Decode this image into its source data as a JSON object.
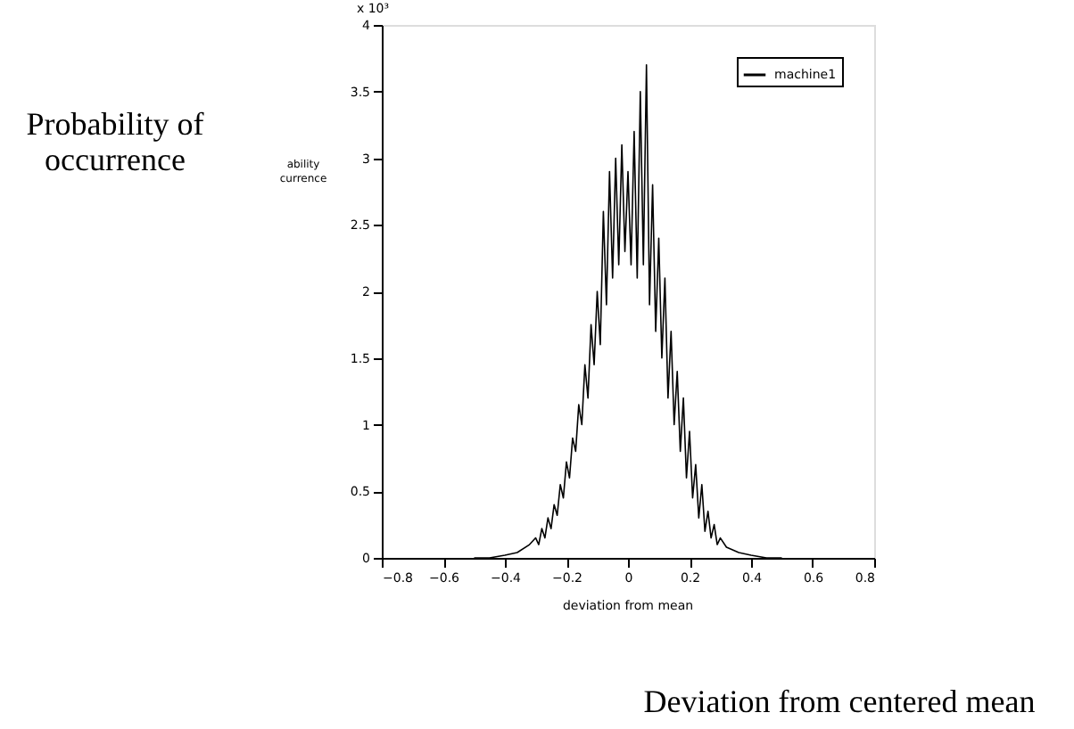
{
  "chart_data": {
    "type": "line",
    "xlabel": "Deviation from centered mean",
    "ylabel": "Probability of occurrence",
    "annotations": [
      "deviation from mean",
      "ability",
      "currence",
      "x 10³"
    ],
    "x": [
      -0.5,
      -0.45,
      -0.4,
      -0.36,
      -0.32,
      -0.3,
      -0.29,
      -0.28,
      -0.27,
      -0.26,
      -0.25,
      -0.24,
      -0.23,
      -0.22,
      -0.21,
      -0.2,
      -0.19,
      -0.18,
      -0.17,
      -0.16,
      -0.15,
      -0.14,
      -0.13,
      -0.12,
      -0.11,
      -0.1,
      -0.09,
      -0.08,
      -0.07,
      -0.06,
      -0.05,
      -0.04,
      -0.03,
      -0.02,
      -0.01,
      0,
      0.01,
      0.02,
      0.03,
      0.04,
      0.05,
      0.06,
      0.07,
      0.08,
      0.09,
      0.1,
      0.11,
      0.12,
      0.13,
      0.14,
      0.15,
      0.16,
      0.17,
      0.18,
      0.19,
      0.2,
      0.21,
      0.22,
      0.23,
      0.24,
      0.25,
      0.26,
      0.27,
      0.28,
      0.29,
      0.3,
      0.32,
      0.36,
      0.4,
      0.45,
      0.5
    ],
    "series": [
      {
        "name": "machine1",
        "color": "#000000",
        "values": [
          0,
          0,
          0.02,
          0.04,
          0.1,
          0.15,
          0.1,
          0.22,
          0.15,
          0.3,
          0.22,
          0.4,
          0.32,
          0.55,
          0.45,
          0.72,
          0.6,
          0.9,
          0.8,
          1.15,
          1.0,
          1.45,
          1.2,
          1.75,
          1.45,
          2.0,
          1.6,
          2.6,
          1.9,
          2.9,
          2.1,
          3.0,
          2.2,
          3.1,
          2.3,
          2.9,
          2.2,
          3.2,
          2.1,
          3.5,
          2.2,
          3.7,
          1.9,
          2.8,
          1.7,
          2.4,
          1.5,
          2.1,
          1.2,
          1.7,
          1.0,
          1.4,
          0.8,
          1.2,
          0.6,
          0.95,
          0.45,
          0.7,
          0.3,
          0.55,
          0.2,
          0.35,
          0.15,
          0.25,
          0.1,
          0.15,
          0.08,
          0.04,
          0.02,
          0,
          0
        ]
      }
    ],
    "xlim": [
      -0.8,
      0.8
    ],
    "xticks": [
      -0.8,
      -0.6,
      -0.4,
      -0.2,
      0,
      0.2,
      0.4,
      0.6,
      0.8
    ],
    "ylim": [
      0,
      4
    ],
    "yticks": [
      0,
      0.5,
      1,
      1.5,
      2,
      2.5,
      3,
      3.5,
      4
    ],
    "grid": false,
    "legend": "top right",
    "marker": "none",
    "line_style": "solid"
  }
}
